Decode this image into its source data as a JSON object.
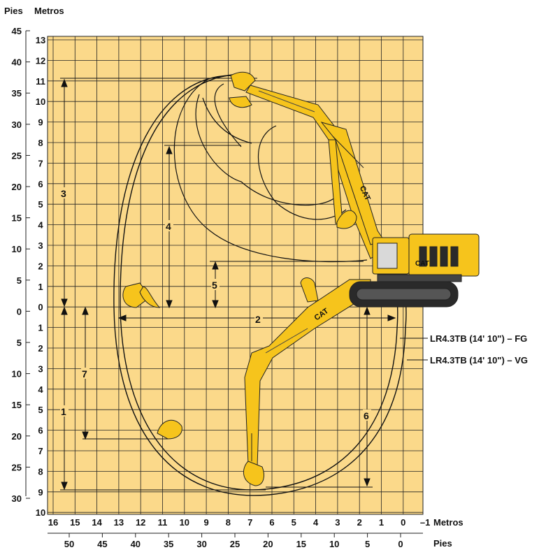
{
  "header": {
    "left_unit": "Pies",
    "right_unit": "Metros"
  },
  "axes": {
    "feet_left": [
      "45",
      "40",
      "35",
      "30",
      "25",
      "20",
      "15",
      "10",
      "5",
      "0",
      "5",
      "10",
      "15",
      "20",
      "25",
      "30"
    ],
    "meters_left": [
      "13",
      "12",
      "11",
      "10",
      "9",
      "8",
      "7",
      "6",
      "5",
      "4",
      "3",
      "2",
      "1",
      "0",
      "1",
      "2",
      "3",
      "4",
      "5",
      "6",
      "7",
      "8",
      "9",
      "10"
    ],
    "meters_bottom": [
      "16",
      "15",
      "14",
      "13",
      "12",
      "11",
      "10",
      "9",
      "8",
      "7",
      "6",
      "5",
      "4",
      "3",
      "2",
      "1",
      "0",
      "–1"
    ],
    "meters_bottom_unit": "Metros",
    "feet_bottom": [
      "50",
      "45",
      "40",
      "35",
      "30",
      "25",
      "20",
      "15",
      "10",
      "5",
      "0"
    ],
    "feet_bottom_unit": "Pies"
  },
  "dimension_labels": [
    "1",
    "2",
    "3",
    "4",
    "5",
    "6",
    "7"
  ],
  "legend": {
    "fg": "LR4.3TB (14' 10\") – FG",
    "vg": "LR4.3TB (14' 10\") – VG"
  },
  "machine": {
    "brand": "CAT"
  },
  "colors": {
    "grid_bg": "#fbd98a",
    "grid_line": "#222222",
    "machine_yellow": "#f6c41c",
    "machine_dark": "#2a2a2a"
  }
}
